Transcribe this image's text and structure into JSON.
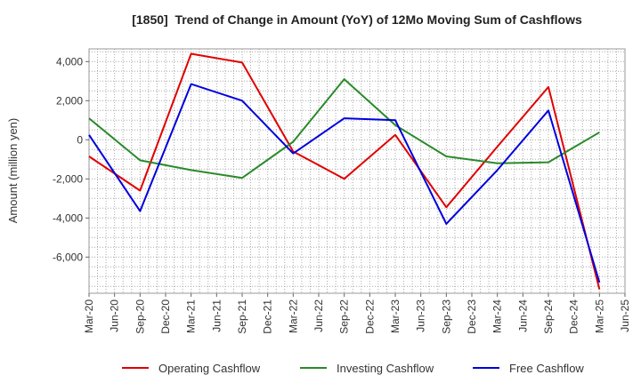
{
  "chart_data": {
    "type": "line",
    "title": "[1850]  Trend of Change in Amount (YoY) of 12Mo Moving Sum of Cashflows",
    "xlabel": "",
    "ylabel": "Amount (million yen)",
    "x_ticks": [
      "Mar-20",
      "Jun-20",
      "Sep-20",
      "Dec-20",
      "Mar-21",
      "Jun-21",
      "Sep-21",
      "Dec-21",
      "Mar-22",
      "Jun-22",
      "Sep-22",
      "Dec-22",
      "Mar-23",
      "Jun-23",
      "Sep-23",
      "Dec-23",
      "Mar-24",
      "Jun-24",
      "Sep-24",
      "Dec-24",
      "Mar-25",
      "Jun-25"
    ],
    "y_ticks": [
      4000,
      2000,
      0,
      -2000,
      -4000,
      -6000
    ],
    "y_tick_labels": [
      "4,000",
      "2,000",
      "0",
      "-2,000",
      "-4,000",
      "-6,000"
    ],
    "ylim": [
      -7850,
      4650
    ],
    "grid": true,
    "legend_position": "bottom",
    "x": [
      "Mar-20",
      "Sep-20",
      "Mar-21",
      "Sep-21",
      "Mar-22",
      "Sep-22",
      "Mar-23",
      "Sep-23",
      "Mar-24",
      "Sep-24",
      "Mar-25"
    ],
    "series": [
      {
        "name": "Operating Cashflow",
        "color": "#e00000",
        "values": [
          -850,
          -2600,
          4400,
          3950,
          -600,
          -2000,
          250,
          -3450,
          -350,
          2700,
          -7650
        ]
      },
      {
        "name": "Investing Cashflow",
        "color": "#2a8a2a",
        "values": [
          1100,
          -1050,
          -1550,
          -1950,
          -100,
          3100,
          750,
          -850,
          -1200,
          -1150,
          380
        ]
      },
      {
        "name": "Free Cashflow",
        "color": "#0000dd",
        "values": [
          250,
          -3650,
          2850,
          2000,
          -700,
          1100,
          1000,
          -4300,
          -1550,
          1500,
          -7300
        ]
      }
    ]
  }
}
